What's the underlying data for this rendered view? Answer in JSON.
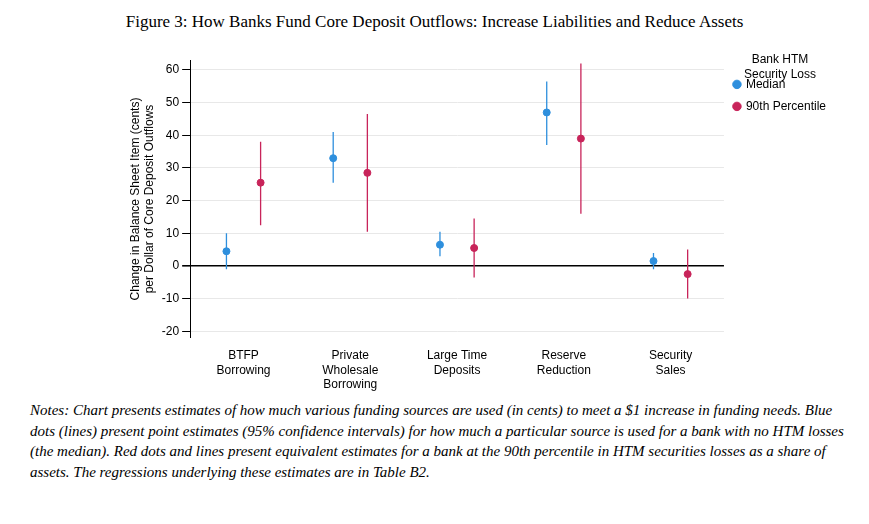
{
  "chart_data": {
    "type": "errorbar",
    "title": "Figure 3: How Banks Fund Core Deposit Outflows: Increase Liabilities and Reduce Assets",
    "y_label": [
      "Change in Balance Sheet Item (cents)",
      "per Dollar of Core Deposit Outflows"
    ],
    "categories": [
      [
        "BTFP",
        "Borrowing"
      ],
      [
        "Private",
        "Wholesale",
        "Borrowing"
      ],
      [
        "Large Time",
        "Deposits"
      ],
      [
        "Reserve",
        "Reduction"
      ],
      [
        "Security",
        "Sales"
      ]
    ],
    "legend_title": [
      "Bank HTM",
      "Security Loss"
    ],
    "series": [
      {
        "name": "Median",
        "color": "#2e8fdd",
        "values": [
          4.5,
          33,
          6.5,
          47,
          1.5
        ],
        "ci_lower": [
          -1,
          25.5,
          3,
          37,
          -1
        ],
        "ci_upper": [
          10,
          41,
          10.5,
          56.5,
          4
        ]
      },
      {
        "name": "90th Percentile",
        "color": "#c8245a",
        "values": [
          25.5,
          28.5,
          5.5,
          39,
          -2.5
        ],
        "ci_lower": [
          12.5,
          10.5,
          -3.5,
          16,
          -10
        ],
        "ci_upper": [
          38,
          46.5,
          14.5,
          62,
          5
        ]
      }
    ],
    "ylim": [
      -22,
      63
    ],
    "yticks": [
      -20,
      -10,
      0,
      10,
      20,
      30,
      40,
      50,
      60
    ],
    "grid": true,
    "legend": "right",
    "notes": "Notes: Chart presents estimates of how much various funding sources are used (in cents) to meet a $1 increase in funding needs. Blue dots (lines) present point estimates (95% confidence intervals) for how much a particular source is used for a bank with no HTM losses (the median). Red dots and lines present equivalent estimates for a bank at the 90th percentile in HTM securities losses as a share of assets. The regressions underlying these estimates are in Table B2."
  }
}
